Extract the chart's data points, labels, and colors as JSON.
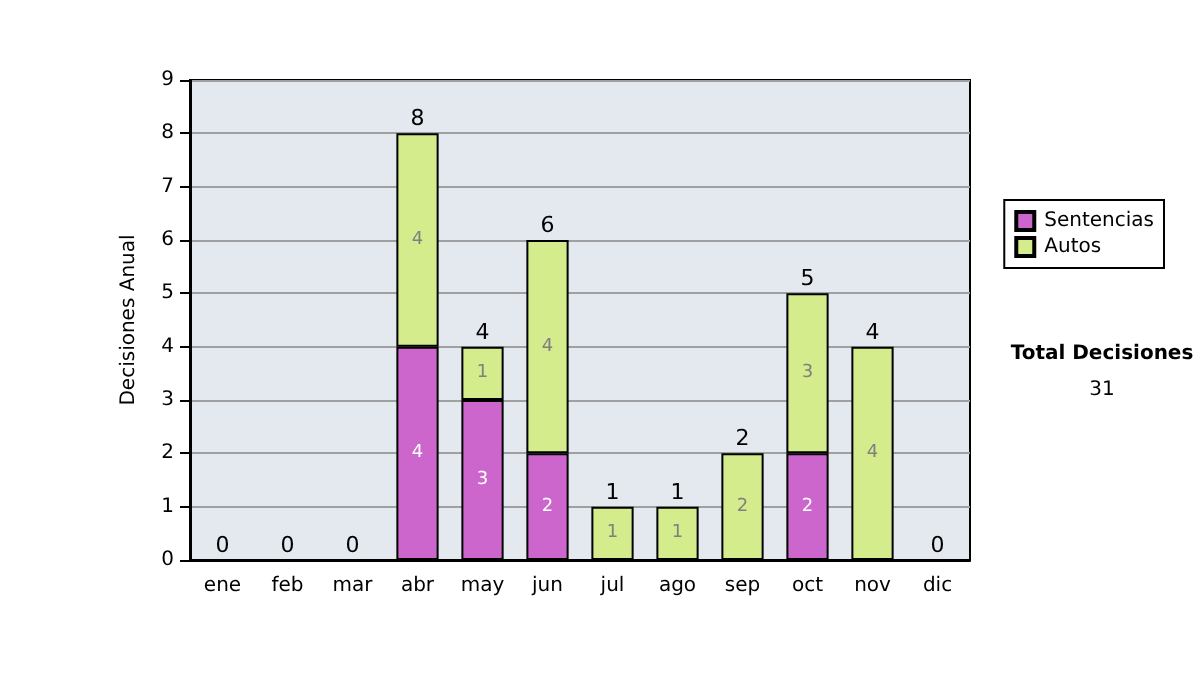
{
  "chart_data": {
    "type": "bar",
    "stacked": true,
    "ylabel": "Decisiones Anual",
    "categories": [
      "ene",
      "feb",
      "mar",
      "abr",
      "may",
      "jun",
      "jul",
      "ago",
      "sep",
      "oct",
      "nov",
      "dic"
    ],
    "series": [
      {
        "name": "Sentencias",
        "color": "#cc66cc",
        "values": [
          0,
          0,
          0,
          4,
          3,
          2,
          0,
          0,
          0,
          2,
          0,
          0
        ],
        "value_labels": [
          null,
          null,
          null,
          "4",
          "3",
          "2",
          null,
          null,
          null,
          "2",
          null,
          null
        ]
      },
      {
        "name": "Autos",
        "color": "#d4ec8c",
        "values": [
          0,
          0,
          0,
          4,
          1,
          4,
          1,
          1,
          2,
          3,
          4,
          0
        ],
        "value_labels": [
          null,
          null,
          null,
          "4",
          "1",
          "4",
          "1",
          "1",
          "2",
          "3",
          "4",
          null
        ]
      }
    ],
    "totals": [
      "0",
      "0",
      "0",
      "8",
      "4",
      "6",
      "1",
      "1",
      "2",
      "5",
      "4",
      "0"
    ],
    "ylim": [
      0,
      9
    ],
    "yticks": [
      0,
      1,
      2,
      3,
      4,
      5,
      6,
      7,
      8,
      9
    ],
    "grid": "y",
    "legend": "right",
    "annotations": [
      "Total Decisiones",
      "31"
    ]
  }
}
